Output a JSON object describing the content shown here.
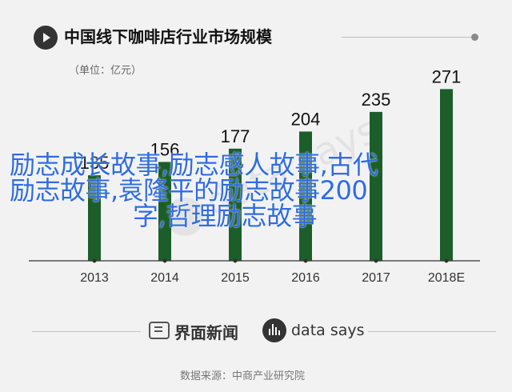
{
  "header": {
    "title": "中国线下咖啡店行业市场规模"
  },
  "chart_data": {
    "type": "bar",
    "title": "中国线下咖啡店行业市场规模",
    "unit": "（单位：亿元）",
    "categories": [
      "2013",
      "2014",
      "2015",
      "2016",
      "2017",
      "2018E"
    ],
    "values": [
      135,
      156,
      177,
      204,
      235,
      271
    ],
    "ylim": [
      0,
      300
    ],
    "bar_color": "#1b5e2a",
    "grid": false
  },
  "overlay": {
    "line1": "励志成长故事,励志感人故事,古代",
    "line2": "励志故事,袁隆平的励志故事200",
    "line3": "字,哲理励志故事"
  },
  "watermark": {
    "text": "data says"
  },
  "footer": {
    "brand1": "界面新闻",
    "brand2": "data says",
    "source": "数据来源：中商产业研究院"
  }
}
